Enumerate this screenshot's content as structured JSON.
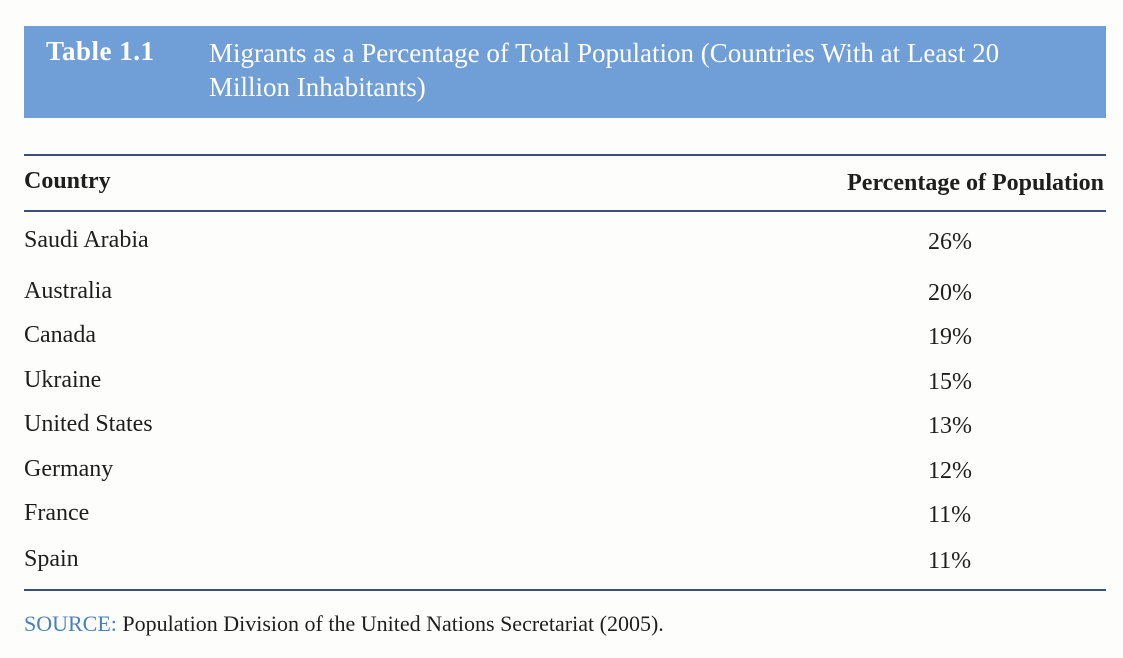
{
  "table": {
    "label": "Table 1.1",
    "title": "Migrants as a Percentage of Total Population (Countries With at Least 20 Million Inhabitants)",
    "columns": [
      "Country",
      "Percentage of Population"
    ],
    "rows": [
      {
        "country": "Saudi Arabia",
        "percentage": "26%"
      },
      {
        "country": "Australia",
        "percentage": "20%"
      },
      {
        "country": "Canada",
        "percentage": "19%"
      },
      {
        "country": "Ukraine",
        "percentage": "15%"
      },
      {
        "country": "United States",
        "percentage": "13%"
      },
      {
        "country": "Germany",
        "percentage": "12%"
      },
      {
        "country": "France",
        "percentage": "11%"
      },
      {
        "country": "Spain",
        "percentage": "11%"
      }
    ],
    "source_label": "SOURCE:",
    "source_text": "Population Division of the United Nations Secretariat (2005)."
  },
  "colors": {
    "title_band": "#6f9fd6",
    "rule": "#3b4f78",
    "source_label": "#4a7fc0"
  }
}
